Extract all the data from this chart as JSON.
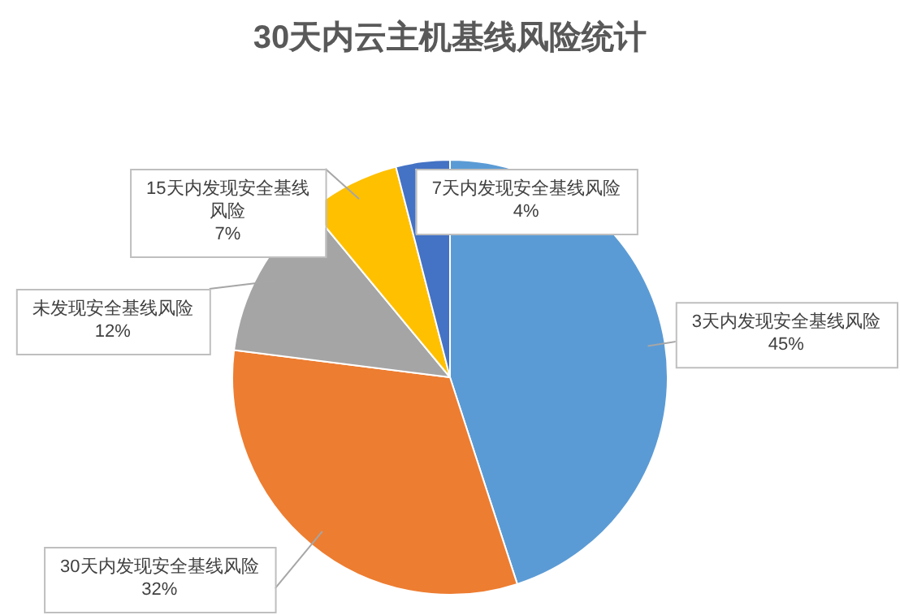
{
  "chart_data": {
    "type": "pie",
    "title": "30天内云主机基线风险统计",
    "categories": [
      "3天内发现安全基线风险",
      "30天内发现安全基线风险",
      "未发现安全基线风险",
      "15天内发现安全基线风险",
      "7天内发现安全基线风险"
    ],
    "values": [
      45,
      32,
      12,
      7,
      4
    ],
    "colors": [
      "#5b9bd5",
      "#ed7d31",
      "#a5a5a5",
      "#ffc000",
      "#4472c4"
    ],
    "value_labels": [
      "45%",
      "32%",
      "12%",
      "7%",
      "4%"
    ],
    "legend": false
  }
}
